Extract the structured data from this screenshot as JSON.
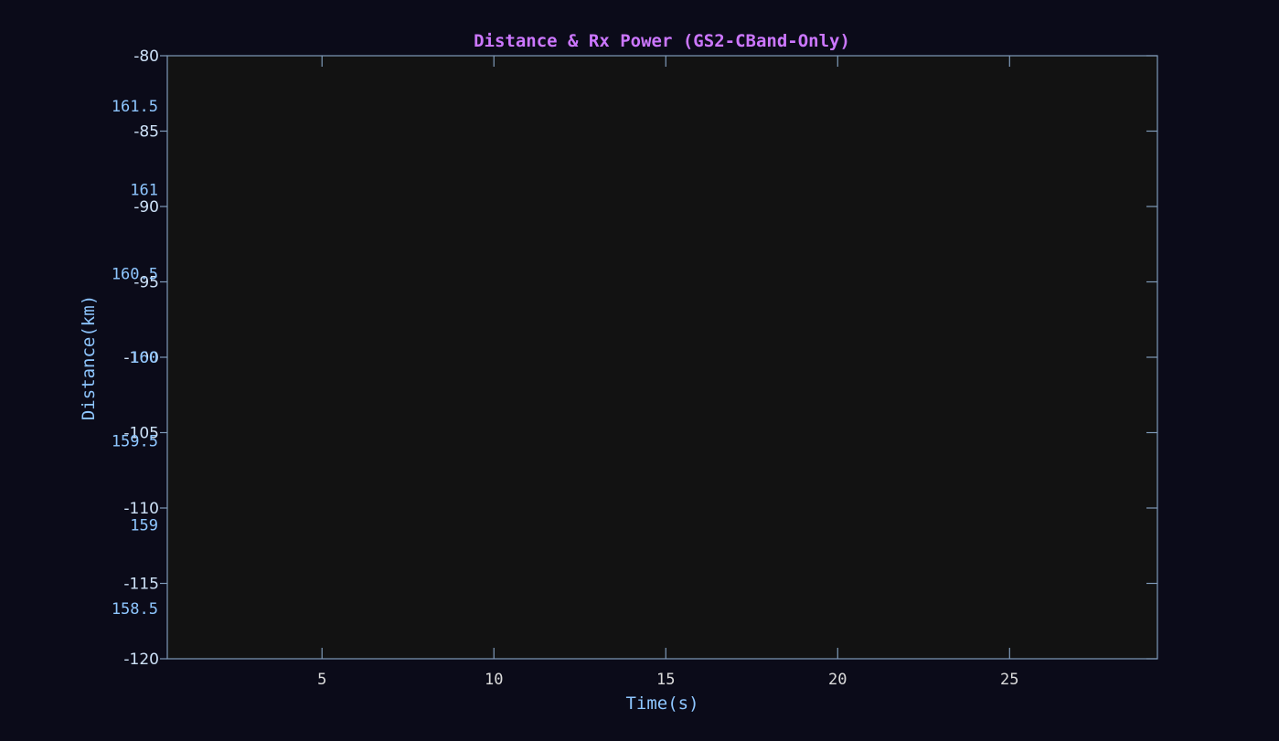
{
  "chart_data": {
    "type": "line",
    "title": "Distance & Rx Power (GS2-CBand-Only)",
    "xlabel": "Time(s)",
    "ylabel": "Distance(km)",
    "xlim": [
      0.5,
      29.3
    ],
    "x_ticks": [
      "5",
      "10",
      "15",
      "20",
      "25"
    ],
    "x_tick_values": [
      5,
      10,
      15,
      20,
      25
    ],
    "y_distance": {
      "ylim": [
        158.2,
        161.8
      ],
      "ticks": [
        "161.5",
        "161",
        "160.5",
        "160",
        "159.5",
        "159",
        "158.5"
      ],
      "tick_values": [
        161.5,
        161,
        160.5,
        160,
        159.5,
        159,
        158.5
      ]
    },
    "y_power": {
      "ylim": [
        -120,
        -80
      ],
      "ticks": [
        "-80",
        "-85",
        "-90",
        "-95",
        "-100",
        "-105",
        "-110",
        "-115",
        "-120"
      ],
      "tick_values": [
        -80,
        -85,
        -90,
        -95,
        -100,
        -105,
        -110,
        -115,
        -120
      ]
    },
    "series": [],
    "grid": false
  },
  "colors": {
    "background": "#0b0b19",
    "plot_area": "#121212",
    "axis": "#7f9ab9",
    "title": "#cc77ff",
    "distance_labels": "#8ec6ff",
    "power_labels": "#cde1f7",
    "x_tick_labels": "#dcdcdc",
    "x_label": "#8ec6ff"
  }
}
